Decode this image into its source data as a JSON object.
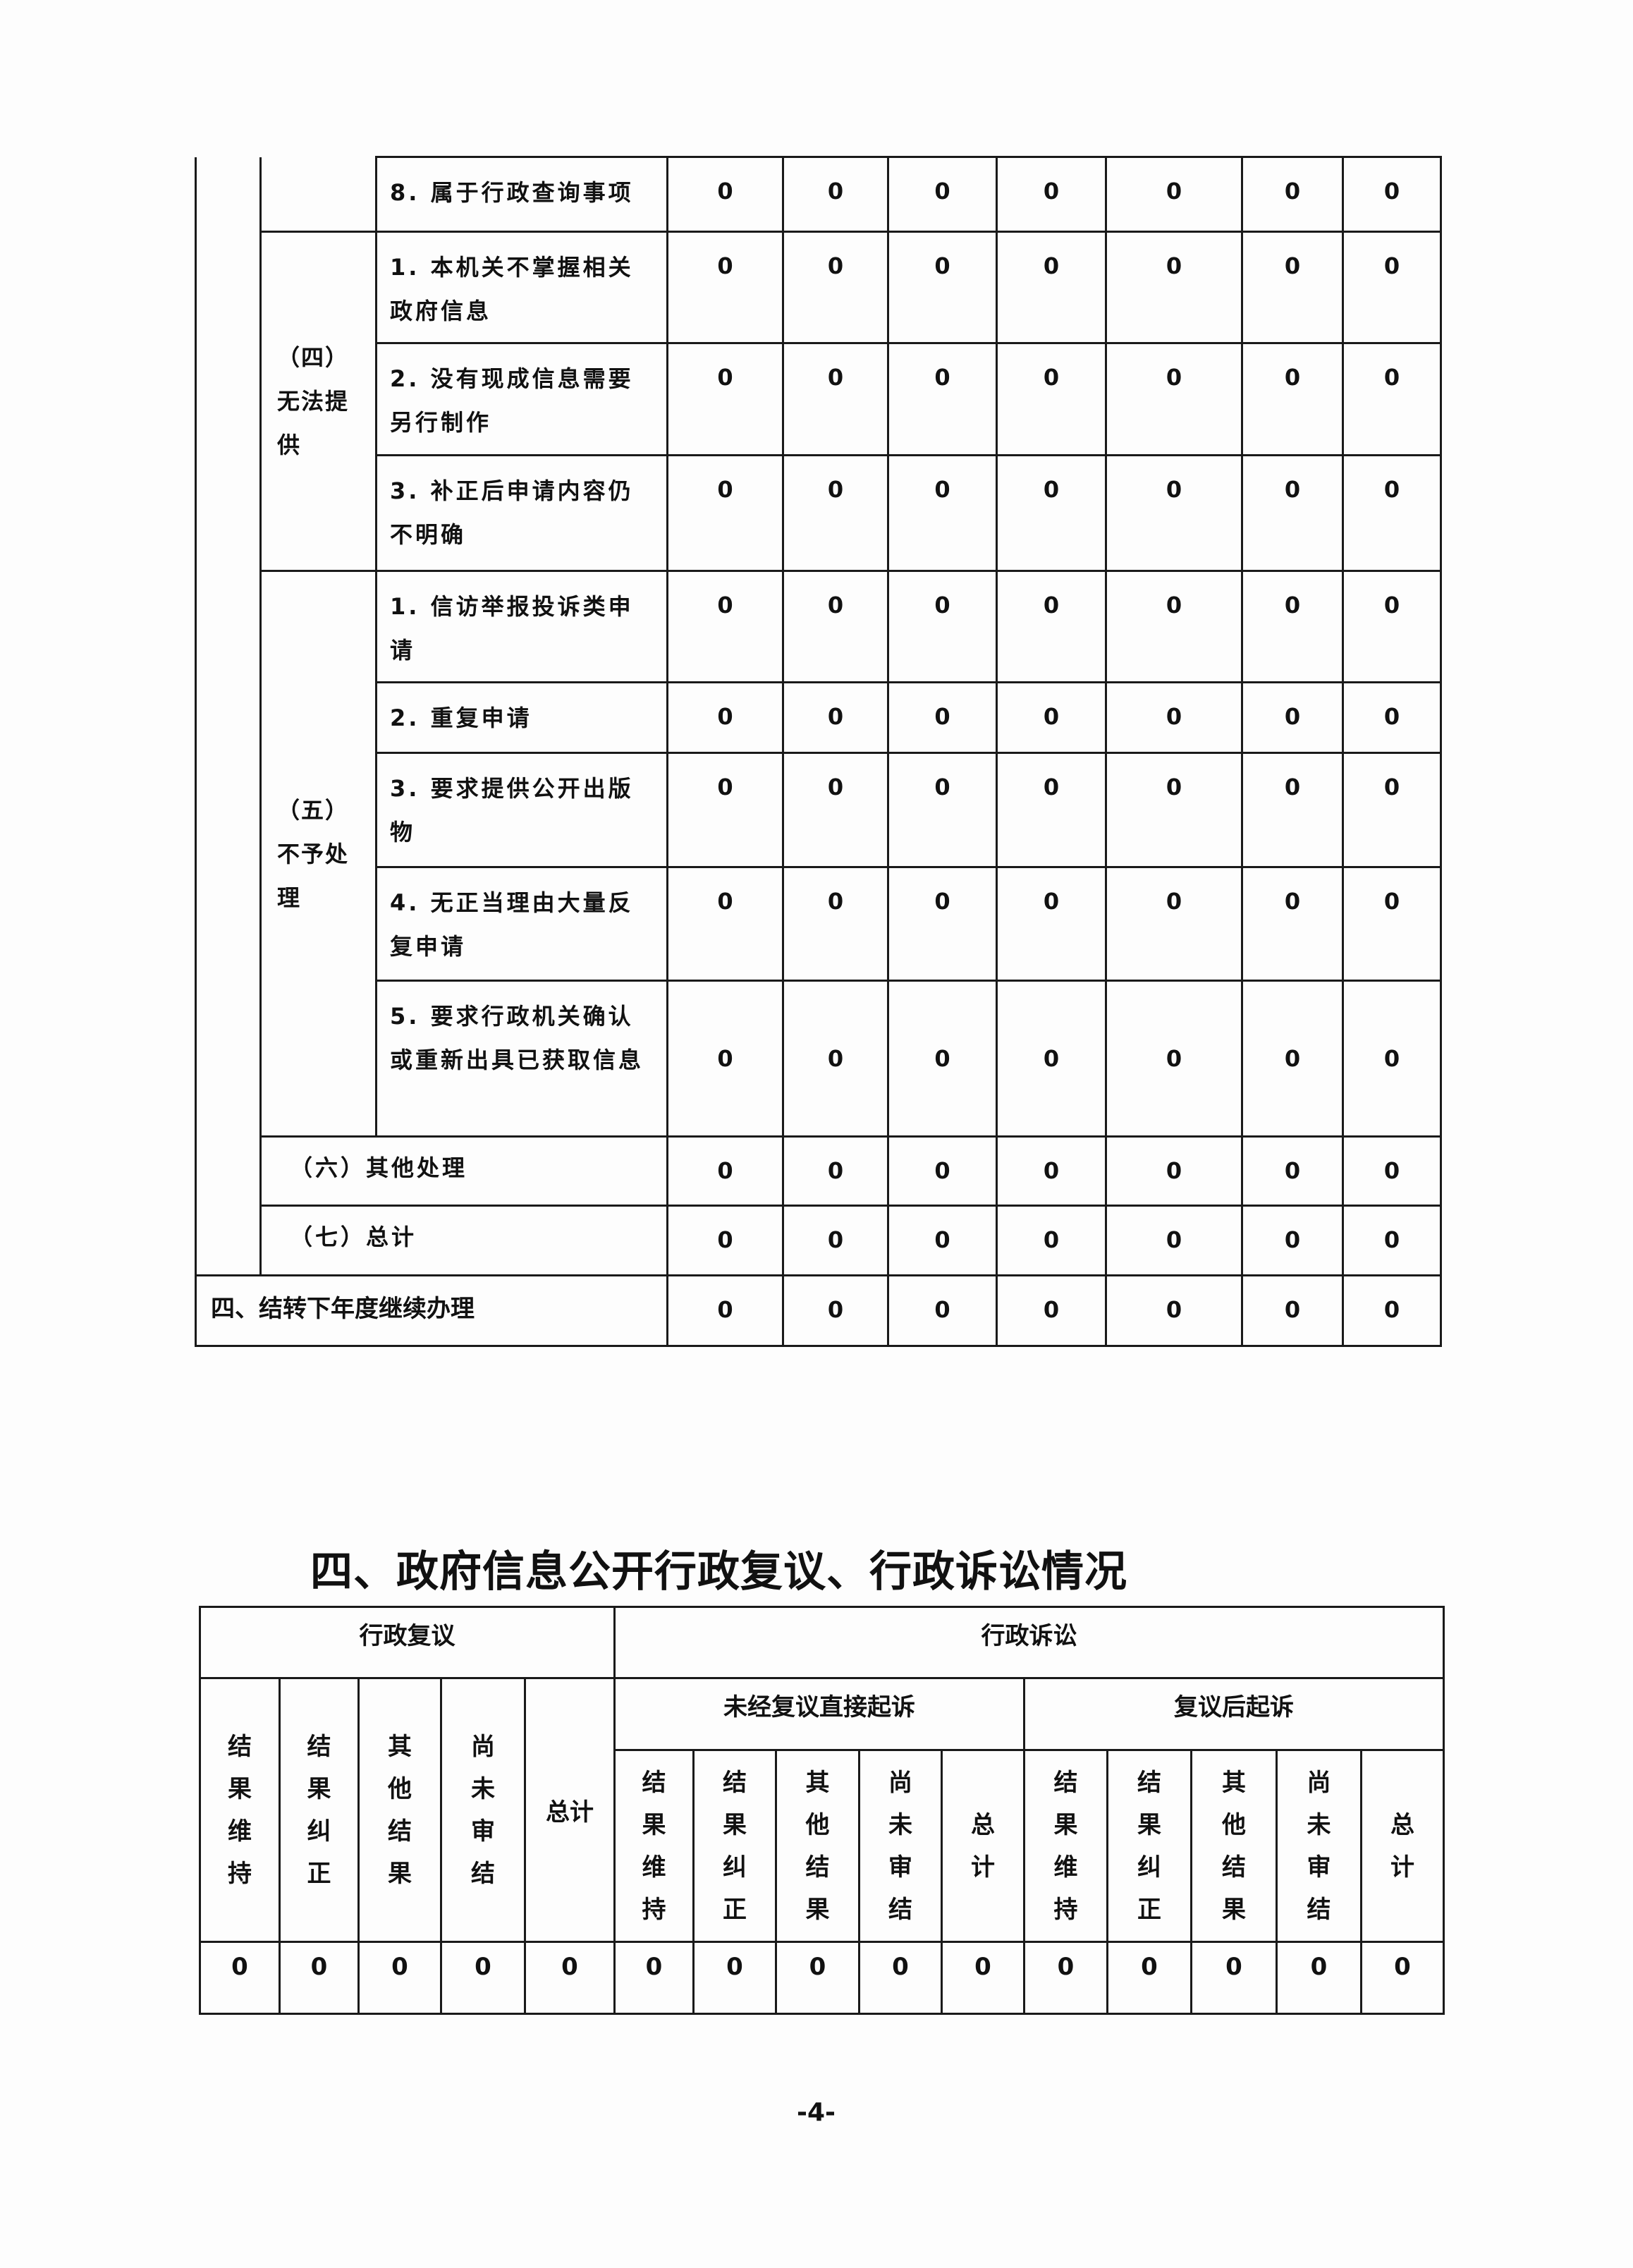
{
  "top_table": {
    "row_8": {
      "label": "8. 属于行政查询事项",
      "values": [
        "0",
        "0",
        "0",
        "0",
        "0",
        "0",
        "0"
      ]
    },
    "group_4": {
      "label": "（四）无法提供",
      "rows": [
        {
          "label": "1. 本机关不掌握相关政府信息",
          "values": [
            "0",
            "0",
            "0",
            "0",
            "0",
            "0",
            "0"
          ]
        },
        {
          "label": "2. 没有现成信息需要另行制作",
          "values": [
            "0",
            "0",
            "0",
            "0",
            "0",
            "0",
            "0"
          ]
        },
        {
          "label": "3. 补正后申请内容仍不明确",
          "values": [
            "0",
            "0",
            "0",
            "0",
            "0",
            "0",
            "0"
          ]
        }
      ]
    },
    "group_5": {
      "label": "（五）不予处理",
      "rows": [
        {
          "label": "1. 信访举报投诉类申请",
          "values": [
            "0",
            "0",
            "0",
            "0",
            "0",
            "0",
            "0"
          ]
        },
        {
          "label": "2. 重复申请",
          "values": [
            "0",
            "0",
            "0",
            "0",
            "0",
            "0",
            "0"
          ]
        },
        {
          "label": "3. 要求提供公开出版物",
          "values": [
            "0",
            "0",
            "0",
            "0",
            "0",
            "0",
            "0"
          ]
        },
        {
          "label": "4. 无正当理由大量反复申请",
          "values": [
            "0",
            "0",
            "0",
            "0",
            "0",
            "0",
            "0"
          ]
        },
        {
          "label": "5. 要求行政机关确认或重新出具已获取信息",
          "values": [
            "0",
            "0",
            "0",
            "0",
            "0",
            "0",
            "0"
          ]
        }
      ]
    },
    "other": {
      "label": "（六）其他处理",
      "values": [
        "0",
        "0",
        "0",
        "0",
        "0",
        "0",
        "0"
      ]
    },
    "total": {
      "label": "（七）总计",
      "values": [
        "0",
        "0",
        "0",
        "0",
        "0",
        "0",
        "0"
      ]
    },
    "carry_over": {
      "label": "四、结转下年度继续办理",
      "values": [
        "0",
        "0",
        "0",
        "0",
        "0",
        "0",
        "0"
      ]
    }
  },
  "section_title": "四、政府信息公开行政复议、行政诉讼情况",
  "review_table": {
    "admin_review": "行政复议",
    "admin_litigation": "行政诉讼",
    "direct_suit": "未经复议直接起诉",
    "suit_after_review": "复议后起诉",
    "review_cols": [
      "结果维持",
      "结果纠正",
      "其他结果",
      "尚未审结",
      "总计"
    ],
    "direct_cols": [
      "结果维持",
      "结果纠正",
      "其他结果",
      "尚未审结",
      "总计"
    ],
    "after_cols": [
      "结果维持",
      "结果纠正",
      "其他结果",
      "尚未审结",
      "总计"
    ],
    "values": [
      "0",
      "0",
      "0",
      "0",
      "0",
      "0",
      "0",
      "0",
      "0",
      "0",
      "0",
      "0",
      "0",
      "0",
      "0"
    ]
  },
  "page_number": "-4-"
}
